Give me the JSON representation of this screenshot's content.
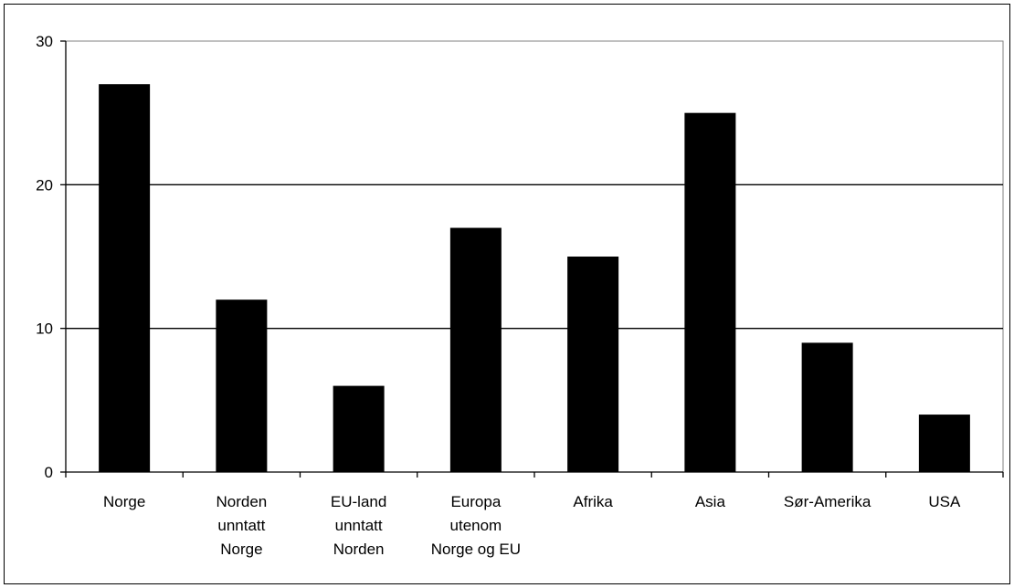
{
  "chart_data": {
    "type": "bar",
    "title": "",
    "xlabel": "",
    "ylabel": "",
    "ylim": [
      0,
      30
    ],
    "yticks": [
      0,
      10,
      20,
      30
    ],
    "grid": true,
    "bar_color": "#000000",
    "categories": [
      [
        "Norge"
      ],
      [
        "Norden",
        "unntatt",
        "Norge"
      ],
      [
        "EU-land",
        "unntatt",
        "Norden"
      ],
      [
        "Europa",
        "utenom",
        "Norge og EU"
      ],
      [
        "Afrika"
      ],
      [
        "Asia"
      ],
      [
        "Sør-Amerika"
      ],
      [
        "USA"
      ]
    ],
    "values": [
      27,
      12,
      6,
      17,
      15,
      25,
      9,
      4
    ]
  }
}
